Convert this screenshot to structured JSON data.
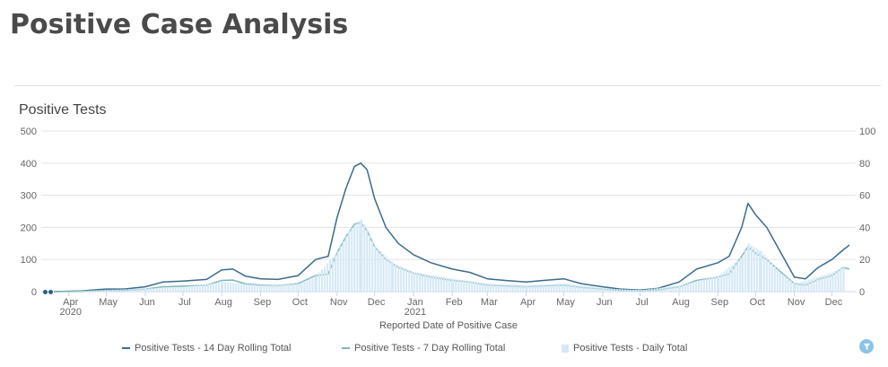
{
  "page": {
    "title": "Positive Case Analysis"
  },
  "chart_data": {
    "type": "line",
    "title": "Positive Tests",
    "xlabel": "Reported Date of Positive Case",
    "ylabel": "",
    "ylim": [
      0,
      500
    ],
    "y2lim": [
      0,
      100
    ],
    "y_ticks": [
      "0",
      "100",
      "200",
      "300",
      "400",
      "500"
    ],
    "y2_ticks": [
      "0",
      "20",
      "40",
      "60",
      "80",
      "100"
    ],
    "x_range": [
      "2020-03-10",
      "2021-12-20"
    ],
    "x_ticks": [
      {
        "label": "Apr",
        "date": "2020-04-01",
        "sub": "2020"
      },
      {
        "label": "May",
        "date": "2020-05-01"
      },
      {
        "label": "Jun",
        "date": "2020-06-01"
      },
      {
        "label": "Jul",
        "date": "2020-07-01"
      },
      {
        "label": "Aug",
        "date": "2020-08-01"
      },
      {
        "label": "Sep",
        "date": "2020-09-01"
      },
      {
        "label": "Oct",
        "date": "2020-10-01"
      },
      {
        "label": "Nov",
        "date": "2020-11-01"
      },
      {
        "label": "Dec",
        "date": "2020-12-01"
      },
      {
        "label": "Jan",
        "date": "2021-01-01",
        "sub": "2021"
      },
      {
        "label": "Feb",
        "date": "2021-02-01"
      },
      {
        "label": "Mar",
        "date": "2021-03-01"
      },
      {
        "label": "Apr",
        "date": "2021-04-01"
      },
      {
        "label": "May",
        "date": "2021-05-01"
      },
      {
        "label": "Jun",
        "date": "2021-06-01"
      },
      {
        "label": "Jul",
        "date": "2021-07-01"
      },
      {
        "label": "Aug",
        "date": "2021-08-01"
      },
      {
        "label": "Sep",
        "date": "2021-09-01"
      },
      {
        "label": "Oct",
        "date": "2021-10-01"
      },
      {
        "label": "Nov",
        "date": "2021-11-01"
      },
      {
        "label": "Dec",
        "date": "2021-12-01"
      }
    ],
    "grid": true,
    "legend_position": "bottom",
    "series": [
      {
        "name": "Positive Tests - 14 Day Rolling Total",
        "color": "#3a6b8c",
        "axis": "left",
        "points": [
          [
            "2020-03-20",
            0
          ],
          [
            "2020-04-10",
            2
          ],
          [
            "2020-05-01",
            8
          ],
          [
            "2020-05-15",
            8
          ],
          [
            "2020-06-01",
            15
          ],
          [
            "2020-06-15",
            30
          ],
          [
            "2020-07-01",
            33
          ],
          [
            "2020-07-20",
            38
          ],
          [
            "2020-08-01",
            68
          ],
          [
            "2020-08-10",
            70
          ],
          [
            "2020-08-20",
            48
          ],
          [
            "2020-09-01",
            40
          ],
          [
            "2020-09-15",
            38
          ],
          [
            "2020-10-01",
            50
          ],
          [
            "2020-10-15",
            100
          ],
          [
            "2020-10-25",
            110
          ],
          [
            "2020-11-01",
            230
          ],
          [
            "2020-11-08",
            320
          ],
          [
            "2020-11-15",
            390
          ],
          [
            "2020-11-20",
            400
          ],
          [
            "2020-11-25",
            380
          ],
          [
            "2020-12-01",
            290
          ],
          [
            "2020-12-10",
            200
          ],
          [
            "2020-12-20",
            150
          ],
          [
            "2021-01-01",
            115
          ],
          [
            "2021-01-15",
            90
          ],
          [
            "2021-02-01",
            70
          ],
          [
            "2021-02-15",
            60
          ],
          [
            "2021-03-01",
            40
          ],
          [
            "2021-03-15",
            35
          ],
          [
            "2021-04-01",
            30
          ],
          [
            "2021-04-15",
            35
          ],
          [
            "2021-05-01",
            40
          ],
          [
            "2021-05-15",
            25
          ],
          [
            "2021-06-01",
            15
          ],
          [
            "2021-06-15",
            8
          ],
          [
            "2021-07-01",
            5
          ],
          [
            "2021-07-15",
            10
          ],
          [
            "2021-08-01",
            30
          ],
          [
            "2021-08-15",
            70
          ],
          [
            "2021-09-01",
            90
          ],
          [
            "2021-09-10",
            110
          ],
          [
            "2021-09-20",
            200
          ],
          [
            "2021-09-25",
            275
          ],
          [
            "2021-10-01",
            240
          ],
          [
            "2021-10-10",
            200
          ],
          [
            "2021-10-20",
            130
          ],
          [
            "2021-11-01",
            45
          ],
          [
            "2021-11-10",
            40
          ],
          [
            "2021-11-20",
            75
          ],
          [
            "2021-12-01",
            100
          ],
          [
            "2021-12-10",
            130
          ],
          [
            "2021-12-15",
            145
          ]
        ]
      },
      {
        "name": "Positive Tests - 7 Day Rolling Total",
        "color": "#7fb8b6",
        "axis": "left",
        "points": [
          [
            "2020-03-20",
            0
          ],
          [
            "2020-04-10",
            1
          ],
          [
            "2020-05-01",
            4
          ],
          [
            "2020-05-15",
            4
          ],
          [
            "2020-06-01",
            8
          ],
          [
            "2020-06-15",
            15
          ],
          [
            "2020-07-01",
            17
          ],
          [
            "2020-07-20",
            20
          ],
          [
            "2020-08-01",
            35
          ],
          [
            "2020-08-10",
            36
          ],
          [
            "2020-08-20",
            24
          ],
          [
            "2020-09-01",
            20
          ],
          [
            "2020-09-15",
            19
          ],
          [
            "2020-10-01",
            25
          ],
          [
            "2020-10-15",
            50
          ],
          [
            "2020-10-25",
            55
          ],
          [
            "2020-11-01",
            120
          ],
          [
            "2020-11-08",
            170
          ],
          [
            "2020-11-15",
            210
          ],
          [
            "2020-11-20",
            215
          ],
          [
            "2020-11-25",
            190
          ],
          [
            "2020-12-01",
            140
          ],
          [
            "2020-12-10",
            100
          ],
          [
            "2020-12-20",
            75
          ],
          [
            "2021-01-01",
            58
          ],
          [
            "2021-01-15",
            45
          ],
          [
            "2021-02-01",
            35
          ],
          [
            "2021-02-15",
            30
          ],
          [
            "2021-03-01",
            20
          ],
          [
            "2021-03-15",
            18
          ],
          [
            "2021-04-01",
            15
          ],
          [
            "2021-04-15",
            18
          ],
          [
            "2021-05-01",
            20
          ],
          [
            "2021-05-15",
            13
          ],
          [
            "2021-06-01",
            8
          ],
          [
            "2021-06-15",
            4
          ],
          [
            "2021-07-01",
            3
          ],
          [
            "2021-07-15",
            5
          ],
          [
            "2021-08-01",
            15
          ],
          [
            "2021-08-15",
            35
          ],
          [
            "2021-09-01",
            45
          ],
          [
            "2021-09-10",
            55
          ],
          [
            "2021-09-20",
            110
          ],
          [
            "2021-09-25",
            140
          ],
          [
            "2021-10-01",
            120
          ],
          [
            "2021-10-10",
            100
          ],
          [
            "2021-10-20",
            65
          ],
          [
            "2021-11-01",
            25
          ],
          [
            "2021-11-10",
            20
          ],
          [
            "2021-11-20",
            38
          ],
          [
            "2021-12-01",
            50
          ],
          [
            "2021-12-10",
            75
          ],
          [
            "2021-12-15",
            70
          ]
        ]
      },
      {
        "name": "Positive Tests - Daily Total",
        "color": "#d4e8f5",
        "axis": "right",
        "type": "bar",
        "points": [
          [
            "2020-04-01",
            0
          ],
          [
            "2020-05-01",
            1
          ],
          [
            "2020-06-01",
            2
          ],
          [
            "2020-07-01",
            3
          ],
          [
            "2020-08-01",
            6
          ],
          [
            "2020-09-01",
            4
          ],
          [
            "2020-10-01",
            5
          ],
          [
            "2020-10-15",
            10
          ],
          [
            "2020-11-01",
            25
          ],
          [
            "2020-11-10",
            38
          ],
          [
            "2020-11-20",
            45
          ],
          [
            "2020-12-01",
            28
          ],
          [
            "2020-12-15",
            18
          ],
          [
            "2021-01-01",
            12
          ],
          [
            "2021-02-01",
            8
          ],
          [
            "2021-03-01",
            5
          ],
          [
            "2021-04-01",
            4
          ],
          [
            "2021-05-01",
            5
          ],
          [
            "2021-06-01",
            2
          ],
          [
            "2021-07-01",
            1
          ],
          [
            "2021-08-01",
            4
          ],
          [
            "2021-09-01",
            10
          ],
          [
            "2021-09-20",
            22
          ],
          [
            "2021-09-25",
            30
          ],
          [
            "2021-10-05",
            25
          ],
          [
            "2021-10-20",
            12
          ],
          [
            "2021-11-01",
            5
          ],
          [
            "2021-12-01",
            12
          ],
          [
            "2021-12-10",
            16
          ]
        ]
      }
    ]
  },
  "legend": {
    "item_14day": "Positive Tests - 14 Day Rolling Total",
    "item_7day": "Positive Tests - 7 Day Rolling Total",
    "item_daily": "Positive Tests - Daily Total"
  }
}
